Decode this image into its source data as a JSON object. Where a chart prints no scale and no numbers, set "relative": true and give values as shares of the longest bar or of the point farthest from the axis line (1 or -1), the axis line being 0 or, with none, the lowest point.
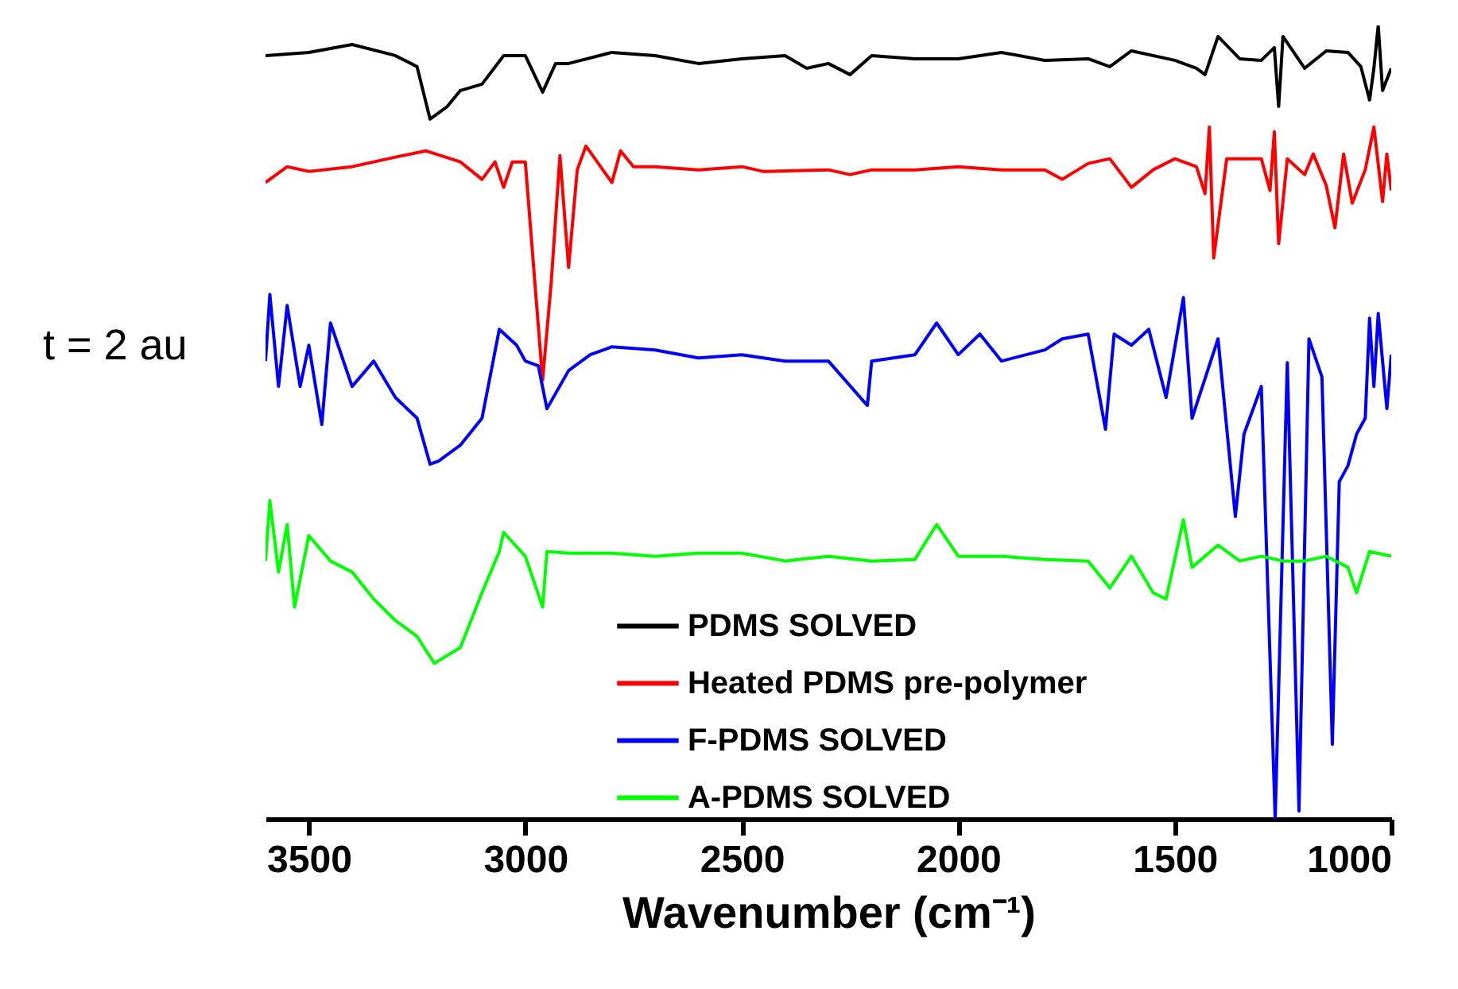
{
  "chart_data": {
    "type": "line",
    "relative": true,
    "xlabel": "Wavenumber (cm⁻¹)",
    "xlim": [
      3600,
      1000
    ],
    "xticks": [
      3500,
      3000,
      2500,
      2000,
      1500,
      1000
    ],
    "tick_labels": "x",
    "legend": "bottom right",
    "annotations": [
      "t = 2 au"
    ],
    "series": [
      {
        "name": "PDMS SOLVED",
        "color": "#000000",
        "x": [
          3600,
          3500,
          3400,
          3300,
          3250,
          3220,
          3180,
          3150,
          3100,
          3050,
          3000,
          2960,
          2930,
          2900,
          2800,
          2700,
          2600,
          2500,
          2400,
          2350,
          2300,
          2250,
          2200,
          2100,
          2000,
          1900,
          1800,
          1700,
          1650,
          1600,
          1500,
          1450,
          1430,
          1400,
          1350,
          1300,
          1270,
          1260,
          1250,
          1200,
          1150,
          1100,
          1070,
          1050,
          1040,
          1030,
          1020,
          1000
        ],
        "values": [
          0.962,
          0.966,
          0.976,
          0.962,
          0.948,
          0.882,
          0.898,
          0.918,
          0.926,
          0.962,
          0.962,
          0.916,
          0.952,
          0.952,
          0.966,
          0.962,
          0.952,
          0.958,
          0.962,
          0.946,
          0.952,
          0.938,
          0.962,
          0.958,
          0.958,
          0.966,
          0.956,
          0.958,
          0.948,
          0.968,
          0.956,
          0.946,
          0.938,
          0.986,
          0.958,
          0.956,
          0.972,
          0.898,
          0.986,
          0.946,
          0.968,
          0.966,
          0.948,
          0.906,
          0.946,
          1,
          0.918,
          0.946
        ]
      },
      {
        "name": "Heated PDMS pre-polymer",
        "color": "#ff0000",
        "x": [
          3600,
          3550,
          3500,
          3400,
          3300,
          3230,
          3150,
          3100,
          3070,
          3050,
          3030,
          3000,
          2960,
          2940,
          2920,
          2900,
          2880,
          2860,
          2800,
          2780,
          2750,
          2700,
          2600,
          2500,
          2450,
          2300,
          2250,
          2200,
          2100,
          2000,
          1900,
          1800,
          1760,
          1700,
          1650,
          1600,
          1550,
          1500,
          1450,
          1430,
          1420,
          1410,
          1380,
          1300,
          1280,
          1270,
          1260,
          1240,
          1200,
          1180,
          1150,
          1130,
          1110,
          1090,
          1060,
          1040,
          1020,
          1010,
          1000
        ],
        "values": [
          0.802,
          0.822,
          0.816,
          0.822,
          0.834,
          0.842,
          0.828,
          0.806,
          0.828,
          0.796,
          0.828,
          0.828,
          0.553,
          0.677,
          0.836,
          0.695,
          0.818,
          0.848,
          0.802,
          0.842,
          0.822,
          0.822,
          0.818,
          0.822,
          0.816,
          0.818,
          0.812,
          0.818,
          0.818,
          0.822,
          0.818,
          0.818,
          0.806,
          0.826,
          0.832,
          0.796,
          0.818,
          0.832,
          0.822,
          0.788,
          0.872,
          0.707,
          0.832,
          0.832,
          0.792,
          0.866,
          0.725,
          0.832,
          0.812,
          0.838,
          0.798,
          0.745,
          0.838,
          0.776,
          0.818,
          0.872,
          0.778,
          0.838,
          0.792
        ]
      },
      {
        "name": "F-PDMS SOLVED",
        "color": "#0000ff",
        "x": [
          3600,
          3590,
          3570,
          3550,
          3520,
          3500,
          3470,
          3450,
          3400,
          3350,
          3300,
          3250,
          3220,
          3200,
          3150,
          3100,
          3060,
          3020,
          3000,
          2970,
          2950,
          2900,
          2850,
          2800,
          2700,
          2600,
          2500,
          2400,
          2300,
          2210,
          2200,
          2100,
          2050,
          2000,
          1950,
          1900,
          1800,
          1760,
          1700,
          1660,
          1640,
          1600,
          1560,
          1520,
          1480,
          1460,
          1400,
          1360,
          1340,
          1300,
          1268,
          1240,
          1213,
          1190,
          1160,
          1136,
          1120,
          1100,
          1080,
          1060,
          1050,
          1040,
          1030,
          1010,
          1000
        ],
        "values": [
          0.577,
          0.661,
          0.545,
          0.647,
          0.545,
          0.597,
          0.497,
          0.625,
          0.545,
          0.577,
          0.531,
          0.505,
          0.447,
          0.451,
          0.471,
          0.505,
          0.617,
          0.597,
          0.577,
          0.571,
          0.517,
          0.565,
          0.585,
          0.595,
          0.591,
          0.581,
          0.585,
          0.577,
          0.577,
          0.521,
          0.577,
          0.585,
          0.625,
          0.585,
          0.611,
          0.577,
          0.591,
          0.605,
          0.611,
          0.491,
          0.611,
          0.597,
          0.617,
          0.531,
          0.657,
          0.505,
          0.605,
          0.381,
          0.485,
          0.545,
          0,
          0.575,
          0.01,
          0.605,
          0.557,
          0.094,
          0.425,
          0.445,
          0.485,
          0.505,
          0.631,
          0.545,
          0.637,
          0.517,
          0.585
        ]
      },
      {
        "name": "A-PDMS SOLVED",
        "color": "#00ff00",
        "x": [
          3600,
          3590,
          3570,
          3550,
          3533,
          3500,
          3450,
          3400,
          3350,
          3300,
          3250,
          3210,
          3150,
          3100,
          3060,
          3050,
          3000,
          2960,
          2950,
          2900,
          2800,
          2700,
          2600,
          2500,
          2400,
          2300,
          2200,
          2100,
          2050,
          2000,
          1900,
          1800,
          1700,
          1650,
          1600,
          1550,
          1520,
          1480,
          1460,
          1400,
          1350,
          1300,
          1250,
          1200,
          1150,
          1100,
          1080,
          1050,
          1000
        ],
        "values": [
          0.325,
          0.401,
          0.311,
          0.371,
          0.267,
          0.357,
          0.325,
          0.311,
          0.277,
          0.25,
          0.23,
          0.196,
          0.216,
          0.285,
          0.337,
          0.361,
          0.331,
          0.267,
          0.337,
          0.335,
          0.335,
          0.331,
          0.335,
          0.335,
          0.325,
          0.331,
          0.325,
          0.327,
          0.371,
          0.331,
          0.331,
          0.327,
          0.325,
          0.291,
          0.331,
          0.285,
          0.277,
          0.377,
          0.317,
          0.345,
          0.325,
          0.331,
          0.325,
          0.325,
          0.331,
          0.317,
          0.285,
          0.337,
          0.331
        ]
      }
    ]
  }
}
